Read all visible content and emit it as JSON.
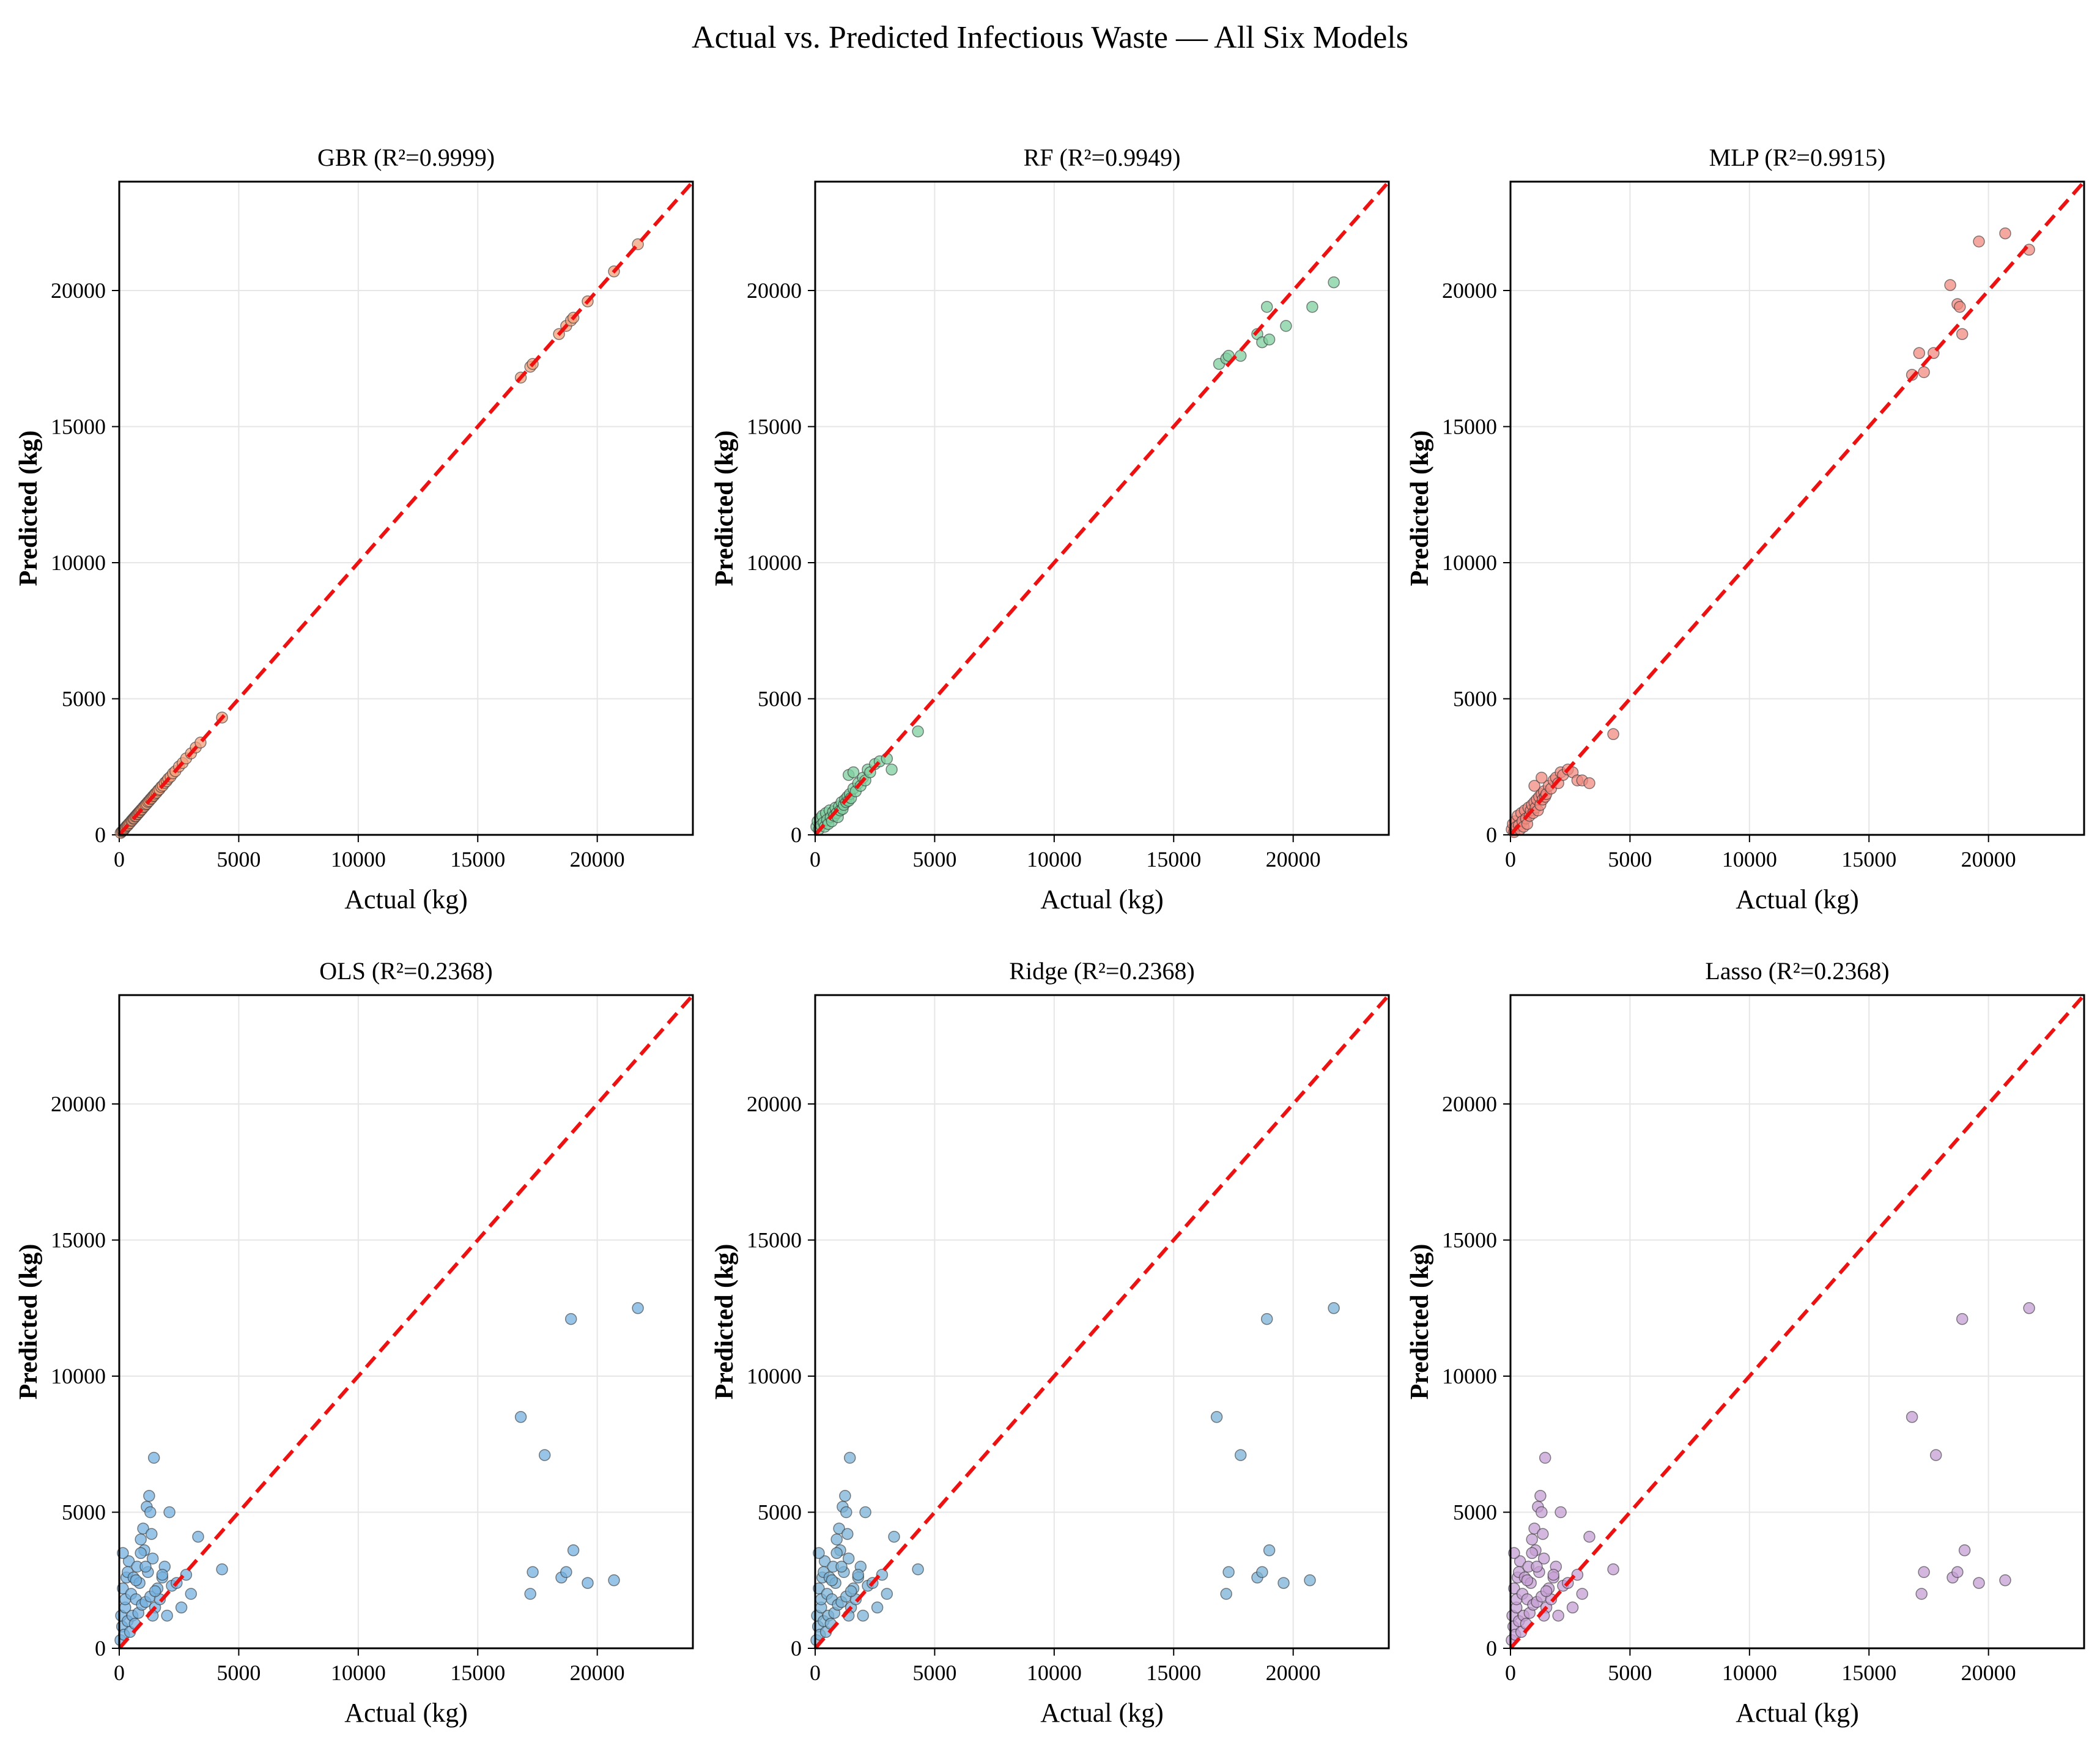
{
  "figure": {
    "title": "Actual vs. Predicted Infectious Waste — All Six Models"
  },
  "colors": {
    "reference_line": "#ee1111",
    "axes": "#000000",
    "grid": "#e6e6e6"
  },
  "chart_data": [
    {
      "type": "scatter",
      "title": "GBR (R²=0.9999)",
      "xlabel": "Actual (kg)",
      "ylabel": "Predicted (kg)",
      "xlim": [
        0,
        24000
      ],
      "ylim": [
        0,
        24000
      ],
      "xticks": [
        "0",
        "5000",
        "10000",
        "15000",
        "20000"
      ],
      "yticks": [
        "0",
        "5000",
        "10000",
        "15000",
        "20000"
      ],
      "grid": true,
      "point_color": "#f2a07b",
      "reference_line": "y = x",
      "x": [
        60,
        110,
        150,
        200,
        240,
        280,
        320,
        360,
        400,
        450,
        500,
        540,
        580,
        620,
        660,
        700,
        740,
        780,
        820,
        860,
        900,
        950,
        1000,
        1050,
        1100,
        1150,
        1200,
        1250,
        1300,
        1350,
        1400,
        1450,
        1500,
        1560,
        1620,
        1680,
        1750,
        1820,
        1900,
        1980,
        2050,
        2150,
        2250,
        2350,
        2500,
        2650,
        2800,
        3000,
        3200,
        3400,
        4300,
        16800,
        17200,
        17300,
        18400,
        18700,
        18900,
        19000,
        19600,
        20700,
        21700
      ],
      "y": [
        70,
        120,
        150,
        190,
        240,
        290,
        330,
        350,
        410,
        440,
        510,
        530,
        590,
        610,
        670,
        690,
        750,
        770,
        830,
        850,
        910,
        940,
        1010,
        1040,
        1110,
        1140,
        1210,
        1240,
        1310,
        1340,
        1410,
        1440,
        1510,
        1550,
        1630,
        1670,
        1760,
        1810,
        1910,
        1970,
        2060,
        2140,
        2260,
        2340,
        2510,
        2640,
        2810,
        2990,
        3210,
        3390,
        4310,
        16800,
        17200,
        17300,
        18400,
        18700,
        18900,
        19000,
        19600,
        20700,
        21700
      ]
    },
    {
      "type": "scatter",
      "title": "RF (R²=0.9949)",
      "xlabel": "Actual (kg)",
      "ylabel": "Predicted (kg)",
      "xlim": [
        0,
        24000
      ],
      "ylim": [
        0,
        24000
      ],
      "xticks": [
        "0",
        "5000",
        "10000",
        "15000",
        "20000"
      ],
      "yticks": [
        "0",
        "5000",
        "10000",
        "15000",
        "20000"
      ],
      "grid": true,
      "point_color": "#7fcf9f",
      "reference_line": "y = x",
      "x": [
        50,
        100,
        150,
        200,
        250,
        300,
        350,
        400,
        450,
        500,
        550,
        600,
        650,
        700,
        750,
        800,
        850,
        900,
        950,
        1000,
        1050,
        1100,
        1150,
        1200,
        1250,
        1300,
        1350,
        1400,
        1450,
        1500,
        1600,
        1700,
        1800,
        1900,
        2000,
        2100,
        2200,
        2300,
        2500,
        2700,
        3000,
        3200,
        4300,
        1400,
        1600,
        16900,
        17200,
        17300,
        17800,
        18500,
        18700,
        18900,
        19000,
        19700,
        20800,
        21700
      ],
      "y": [
        300,
        500,
        200,
        600,
        350,
        700,
        450,
        300,
        800,
        550,
        400,
        900,
        650,
        500,
        850,
        700,
        1000,
        800,
        650,
        1050,
        900,
        1200,
        950,
        1100,
        1300,
        1200,
        1400,
        1250,
        1500,
        1350,
        1700,
        1600,
        1900,
        1800,
        2100,
        2000,
        2400,
        2300,
        2600,
        2700,
        2800,
        2400,
        3800,
        2200,
        2300,
        17300,
        17500,
        17600,
        17600,
        18400,
        18100,
        19400,
        18200,
        18700,
        19400,
        20300
      ]
    },
    {
      "type": "scatter",
      "title": "MLP (R²=0.9915)",
      "xlabel": "Actual (kg)",
      "ylabel": "Predicted (kg)",
      "xlim": [
        0,
        24000
      ],
      "ylim": [
        0,
        24000
      ],
      "xticks": [
        "0",
        "5000",
        "10000",
        "15000",
        "20000"
      ],
      "yticks": [
        "0",
        "5000",
        "10000",
        "15000",
        "20000"
      ],
      "grid": true,
      "point_color": "#f08b80",
      "reference_line": "y = x",
      "x": [
        50,
        100,
        150,
        200,
        250,
        300,
        350,
        400,
        450,
        500,
        550,
        600,
        650,
        700,
        750,
        800,
        850,
        900,
        950,
        1000,
        1050,
        1100,
        1150,
        1200,
        1250,
        1300,
        1350,
        1400,
        1450,
        1500,
        1600,
        1700,
        1800,
        1900,
        2000,
        2100,
        2200,
        2400,
        2600,
        2800,
        3000,
        3300,
        4300,
        1000,
        1300,
        16800,
        17100,
        17300,
        17700,
        18400,
        18700,
        18800,
        18900,
        19600,
        20700,
        21700
      ],
      "y": [
        200,
        400,
        100,
        500,
        300,
        700,
        350,
        200,
        800,
        500,
        300,
        900,
        600,
        400,
        1000,
        700,
        900,
        1100,
        800,
        1200,
        1000,
        1300,
        900,
        1400,
        1100,
        1500,
        1300,
        1600,
        1400,
        1500,
        1800,
        1700,
        2000,
        2100,
        1900,
        2300,
        2200,
        2400,
        2300,
        2000,
        2000,
        1900,
        3700,
        1800,
        2100,
        16900,
        17700,
        17000,
        17700,
        20200,
        19500,
        19400,
        18400,
        21800,
        22100,
        21500
      ]
    },
    {
      "type": "scatter",
      "title": "OLS (R²=0.2368)",
      "xlabel": "Actual (kg)",
      "ylabel": "Predicted (kg)",
      "xlim": [
        0,
        24000
      ],
      "ylim": [
        0,
        24000
      ],
      "xticks": [
        "0",
        "5000",
        "10000",
        "15000",
        "20000"
      ],
      "yticks": [
        "0",
        "5000",
        "10000",
        "15000",
        "20000"
      ],
      "grid": true,
      "point_color": "#74b0df",
      "reference_line": "y = x",
      "x": [
        50,
        80,
        120,
        150,
        200,
        250,
        300,
        350,
        400,
        150,
        250,
        350,
        450,
        500,
        550,
        600,
        650,
        700,
        750,
        800,
        850,
        900,
        950,
        1000,
        1050,
        1100,
        1150,
        1200,
        1250,
        1300,
        1350,
        1400,
        1450,
        1500,
        1600,
        1700,
        1800,
        1900,
        2000,
        2200,
        2400,
        2600,
        2800,
        3000,
        3300,
        4300,
        700,
        900,
        1100,
        1300,
        1400,
        1500,
        1800,
        2100,
        16800,
        17200,
        17300,
        17800,
        18500,
        18700,
        18900,
        19000,
        19600,
        20700,
        21700
      ],
      "y": [
        300,
        1200,
        800,
        2200,
        500,
        1500,
        2600,
        1000,
        3200,
        3500,
        1800,
        2800,
        600,
        2000,
        1200,
        2600,
        900,
        1800,
        3000,
        1300,
        2400,
        4000,
        1600,
        4400,
        3600,
        1700,
        5200,
        2800,
        5600,
        1900,
        4200,
        3300,
        7000,
        1500,
        2200,
        1800,
        2600,
        3000,
        1200,
        2300,
        2400,
        1500,
        2700,
        2000,
        4100,
        2900,
        2500,
        3500,
        3000,
        5000,
        1200,
        2100,
        2700,
        5000,
        8500,
        2000,
        2800,
        7100,
        2600,
        2800,
        12100,
        3600,
        2400,
        2500,
        12500
      ]
    },
    {
      "type": "scatter",
      "title": "Ridge (R²=0.2368)",
      "xlabel": "Actual (kg)",
      "ylabel": "Predicted (kg)",
      "xlim": [
        0,
        24000
      ],
      "ylim": [
        0,
        24000
      ],
      "xticks": [
        "0",
        "5000",
        "10000",
        "15000",
        "20000"
      ],
      "yticks": [
        "0",
        "5000",
        "10000",
        "15000",
        "20000"
      ],
      "grid": true,
      "point_color": "#7ab1d6",
      "reference_line": "y = x",
      "x": [
        50,
        80,
        120,
        150,
        200,
        250,
        300,
        350,
        400,
        150,
        250,
        350,
        450,
        500,
        550,
        600,
        650,
        700,
        750,
        800,
        850,
        900,
        950,
        1000,
        1050,
        1100,
        1150,
        1200,
        1250,
        1300,
        1350,
        1400,
        1450,
        1500,
        1600,
        1700,
        1800,
        1900,
        2000,
        2200,
        2400,
        2600,
        2800,
        3000,
        3300,
        4300,
        700,
        900,
        1100,
        1300,
        1400,
        1500,
        1800,
        2100,
        16800,
        17200,
        17300,
        17800,
        18500,
        18700,
        18900,
        19000,
        19600,
        20700,
        21700
      ],
      "y": [
        300,
        1200,
        800,
        2200,
        500,
        1500,
        2600,
        1000,
        3200,
        3500,
        1800,
        2800,
        600,
        2000,
        1200,
        2600,
        900,
        1800,
        3000,
        1300,
        2400,
        4000,
        1600,
        4400,
        3600,
        1700,
        5200,
        2800,
        5600,
        1900,
        4200,
        3300,
        7000,
        1500,
        2200,
        1800,
        2600,
        3000,
        1200,
        2300,
        2400,
        1500,
        2700,
        2000,
        4100,
        2900,
        2500,
        3500,
        3000,
        5000,
        1200,
        2100,
        2700,
        5000,
        8500,
        2000,
        2800,
        7100,
        2600,
        2800,
        12100,
        3600,
        2400,
        2500,
        12500
      ]
    },
    {
      "type": "scatter",
      "title": "Lasso (R²=0.2368)",
      "xlabel": "Actual (kg)",
      "ylabel": "Predicted (kg)",
      "xlim": [
        0,
        24000
      ],
      "ylim": [
        0,
        24000
      ],
      "xticks": [
        "0",
        "5000",
        "10000",
        "15000",
        "20000"
      ],
      "yticks": [
        "0",
        "5000",
        "10000",
        "15000",
        "20000"
      ],
      "grid": true,
      "point_color": "#c59fd4",
      "reference_line": "y = x",
      "x": [
        50,
        80,
        120,
        150,
        200,
        250,
        300,
        350,
        400,
        150,
        250,
        350,
        450,
        500,
        550,
        600,
        650,
        700,
        750,
        800,
        850,
        900,
        950,
        1000,
        1050,
        1100,
        1150,
        1200,
        1250,
        1300,
        1350,
        1400,
        1450,
        1500,
        1600,
        1700,
        1800,
        1900,
        2000,
        2200,
        2400,
        2600,
        2800,
        3000,
        3300,
        4300,
        700,
        900,
        1100,
        1300,
        1400,
        1500,
        1800,
        2100,
        16800,
        17200,
        17300,
        17800,
        18500,
        18700,
        18900,
        19000,
        19600,
        20700,
        21700
      ],
      "y": [
        300,
        1200,
        800,
        2200,
        500,
        1500,
        2600,
        1000,
        3200,
        3500,
        1800,
        2800,
        600,
        2000,
        1200,
        2600,
        900,
        1800,
        3000,
        1300,
        2400,
        4000,
        1600,
        4400,
        3600,
        1700,
        5200,
        2800,
        5600,
        1900,
        4200,
        3300,
        7000,
        1500,
        2200,
        1800,
        2600,
        3000,
        1200,
        2300,
        2400,
        1500,
        2700,
        2000,
        4100,
        2900,
        2500,
        3500,
        3000,
        5000,
        1200,
        2100,
        2700,
        5000,
        8500,
        2000,
        2800,
        7100,
        2600,
        2800,
        12100,
        3600,
        2400,
        2500,
        12500
      ]
    }
  ]
}
